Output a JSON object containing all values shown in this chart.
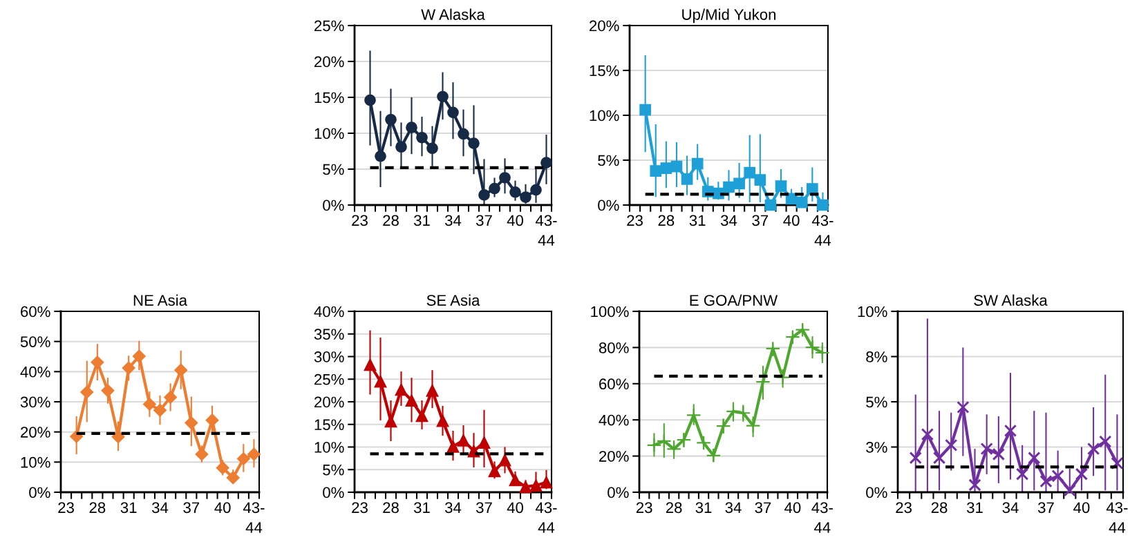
{
  "chart_data": [
    {
      "type": "line",
      "title": "W Alaska",
      "categories": [
        "23",
        null,
        null,
        "28",
        null,
        null,
        "31",
        null,
        null,
        "34",
        null,
        null,
        "37",
        null,
        null,
        "40",
        null,
        null,
        "43-\n44"
      ],
      "ylim": [
        0,
        25
      ],
      "yticks": [
        {
          "value": 0,
          "label": "0%"
        },
        {
          "value": 5,
          "label": "5%"
        },
        {
          "value": 10,
          "label": "10%"
        },
        {
          "value": 15,
          "label": "15%"
        },
        {
          "value": 20,
          "label": "20%"
        },
        {
          "value": 25,
          "label": "25%"
        }
      ],
      "grid": "y",
      "marker": "circle",
      "line_style": "solid",
      "series": [
        {
          "color": "#172a45",
          "values": [
            null,
            14.6,
            6.8,
            11.9,
            8.1,
            10.8,
            9.4,
            7.9,
            15.1,
            12.9,
            9.9,
            8.6,
            1.4,
            2.3,
            3.8,
            1.8,
            1.1,
            2.1,
            5.9
          ],
          "errors": [
            null,
            [
              8.3,
              21.5
            ],
            [
              2.5,
              13.1
            ],
            [
              8.2,
              16.2
            ],
            [
              5.2,
              11.5
            ],
            [
              7.1,
              15.0
            ],
            [
              6.8,
              12.3
            ],
            [
              5.4,
              11.0
            ],
            [
              11.9,
              18.5
            ],
            [
              9.2,
              17.1
            ],
            [
              6.8,
              13.3
            ],
            [
              4.3,
              13.9
            ],
            [
              0,
              6.4
            ],
            [
              1.1,
              3.8
            ],
            [
              1.6,
              6.5
            ],
            [
              0.6,
              3.4
            ],
            [
              0.2,
              2.9
            ],
            [
              0.3,
              5.1
            ],
            [
              2.9,
              9.8
            ]
          ]
        }
      ],
      "ref_lines": [
        {
          "axis": "y",
          "value": 5.2,
          "color": "#000000",
          "line_style": "dashed"
        }
      ]
    },
    {
      "type": "line",
      "title": "Up/Mid Yukon",
      "categories": [
        "23",
        null,
        null,
        "28",
        null,
        null,
        "31",
        null,
        null,
        "34",
        null,
        null,
        "37",
        null,
        null,
        "40",
        null,
        null,
        "43-\n44"
      ],
      "ylim": [
        0,
        20
      ],
      "yticks": [
        {
          "value": 0,
          "label": "0%"
        },
        {
          "value": 5,
          "label": "5%"
        },
        {
          "value": 10,
          "label": "10%"
        },
        {
          "value": 15,
          "label": "15%"
        },
        {
          "value": 20,
          "label": "20%"
        }
      ],
      "grid": "y",
      "marker": "square",
      "line_style": "solid",
      "series": [
        {
          "color": "#1ea0d7",
          "values": [
            null,
            10.6,
            3.8,
            4.1,
            4.3,
            2.9,
            4.6,
            1.5,
            1.3,
            2.0,
            2.4,
            3.6,
            2.8,
            0,
            2.1,
            0.7,
            0.3,
            1.8,
            0
          ],
          "errors": [
            null,
            [
              5.9,
              16.7
            ],
            [
              0.9,
              9.0
            ],
            [
              1.9,
              7.1
            ],
            [
              2.0,
              7.0
            ],
            [
              1.1,
              5.5
            ],
            [
              2.8,
              6.8
            ],
            [
              0.5,
              3.1
            ],
            [
              0.6,
              2.6
            ],
            [
              0.5,
              3.9
            ],
            [
              0.8,
              4.7
            ],
            [
              0.3,
              7.8
            ],
            [
              0.3,
              7.9
            ],
            null,
            [
              0.8,
              4.0
            ],
            [
              0.1,
              1.8
            ],
            [
              0.3,
              2.0
            ],
            [
              0.4,
              4.2
            ],
            [
              0,
              1.4
            ]
          ]
        }
      ],
      "ref_lines": [
        {
          "axis": "y",
          "value": 1.2,
          "color": "#000000",
          "line_style": "dashed"
        }
      ]
    },
    {
      "type": "line",
      "title": "NE Asia",
      "categories": [
        "23",
        null,
        null,
        "28",
        null,
        null,
        "31",
        null,
        null,
        "34",
        null,
        null,
        "37",
        null,
        null,
        "40",
        null,
        null,
        "43-\n44"
      ],
      "ylim": [
        0,
        60
      ],
      "yticks": [
        {
          "value": 0,
          "label": "0%"
        },
        {
          "value": 10,
          "label": "10%"
        },
        {
          "value": 20,
          "label": "20%"
        },
        {
          "value": 30,
          "label": "30%"
        },
        {
          "value": 40,
          "label": "40%"
        },
        {
          "value": 50,
          "label": "50%"
        },
        {
          "value": 60,
          "label": "60%"
        }
      ],
      "grid": "y",
      "marker": "diamond",
      "line_style": "solid",
      "series": [
        {
          "color": "#ed7d31",
          "values": [
            null,
            18.5,
            33.2,
            43.1,
            33.7,
            18.4,
            41.2,
            45.1,
            29.2,
            27.2,
            31.5,
            40.5,
            23.0,
            12.6,
            23.9,
            8.1,
            4.8,
            11.1,
            12.6
          ],
          "errors": [
            null,
            [
              12.6,
              25.2
            ],
            [
              23.3,
              43.6
            ],
            [
              37.1,
              49.2
            ],
            [
              29.4,
              38.0
            ],
            [
              13.7,
              23.5
            ],
            [
              37.0,
              45.3
            ],
            [
              40.5,
              50.2
            ],
            [
              25.0,
              33.4
            ],
            [
              22.4,
              32.1
            ],
            [
              26.9,
              36.1
            ],
            [
              34.2,
              47.0
            ],
            [
              15.3,
              31.7
            ],
            [
              9.9,
              15.5
            ],
            [
              19.1,
              28.7
            ],
            [
              5.6,
              10.7
            ],
            [
              2.9,
              7.5
            ],
            [
              6.7,
              16.0
            ],
            [
              8.2,
              17.6
            ]
          ]
        }
      ],
      "ref_lines": [
        {
          "axis": "y",
          "value": 19.5,
          "color": "#000000",
          "line_style": "dashed"
        }
      ]
    },
    {
      "type": "line",
      "title": "SE Asia",
      "categories": [
        "23",
        null,
        null,
        "28",
        null,
        null,
        "31",
        null,
        null,
        "34",
        null,
        null,
        "37",
        null,
        null,
        "40",
        null,
        null,
        "43-\n44"
      ],
      "ylim": [
        0,
        40
      ],
      "yticks": [
        {
          "value": 0,
          "label": "0%"
        },
        {
          "value": 5,
          "label": "5%"
        },
        {
          "value": 10,
          "label": "10%"
        },
        {
          "value": 15,
          "label": "15%"
        },
        {
          "value": 20,
          "label": "20%"
        },
        {
          "value": 25,
          "label": "25%"
        },
        {
          "value": 30,
          "label": "30%"
        },
        {
          "value": 35,
          "label": "35%"
        },
        {
          "value": 40,
          "label": "40%"
        }
      ],
      "grid": "y",
      "marker": "triangle",
      "line_style": "solid",
      "series": [
        {
          "color": "#c00000",
          "values": [
            null,
            28.2,
            24.5,
            15.7,
            22.7,
            20.3,
            16.9,
            22.5,
            15.8,
            10.1,
            11.5,
            9.1,
            11.0,
            4.7,
            7.1,
            2.7,
            1.2,
            1.5,
            2.2
          ],
          "errors": [
            null,
            [
              21.6,
              35.8
            ],
            [
              15.9,
              34.2
            ],
            [
              11.3,
              20.3
            ],
            [
              19.1,
              26.7
            ],
            [
              15.5,
              25.3
            ],
            [
              13.9,
              20.3
            ],
            [
              18.6,
              27.0
            ],
            [
              12.5,
              19.1
            ],
            [
              7.0,
              13.6
            ],
            [
              8.7,
              14.8
            ],
            [
              5.5,
              13.1
            ],
            [
              5.5,
              18.2
            ],
            [
              3.0,
              6.8
            ],
            [
              4.2,
              10.0
            ],
            [
              1.4,
              4.6
            ],
            [
              0.3,
              2.7
            ],
            [
              0.3,
              4.5
            ],
            [
              0.7,
              4.9
            ]
          ]
        }
      ],
      "ref_lines": [
        {
          "axis": "y",
          "value": 8.5,
          "color": "#000000",
          "line_style": "dashed"
        }
      ]
    },
    {
      "type": "line",
      "title": "E GOA/PNW",
      "categories": [
        "23",
        null,
        null,
        "28",
        null,
        null,
        "31",
        null,
        null,
        "34",
        null,
        null,
        "37",
        null,
        null,
        "40",
        null,
        null,
        "43-\n44"
      ],
      "ylim": [
        0,
        100
      ],
      "yticks": [
        {
          "value": 0,
          "label": "0%"
        },
        {
          "value": 20,
          "label": "20%"
        },
        {
          "value": 40,
          "label": "40%"
        },
        {
          "value": 60,
          "label": "60%"
        },
        {
          "value": 80,
          "label": "80%"
        },
        {
          "value": 100,
          "label": "100%"
        }
      ],
      "grid": "y",
      "marker": "plus",
      "line_style": "solid",
      "series": [
        {
          "color": "#4ea72e",
          "values": [
            null,
            26.0,
            28.3,
            23.9,
            29.0,
            42.6,
            27.3,
            20.3,
            36.6,
            44.7,
            43.8,
            36.8,
            61.0,
            79.4,
            63.5,
            85.8,
            89.8,
            80.1,
            77.1
          ],
          "errors": [
            null,
            [
              19.7,
              32.7
            ],
            [
              19.1,
              38.1
            ],
            [
              18.4,
              28.6
            ],
            [
              24.8,
              32.7
            ],
            [
              37.1,
              48.7
            ],
            [
              23.9,
              30.9
            ],
            [
              16.8,
              24.1
            ],
            [
              32.4,
              40.7
            ],
            [
              39.1,
              49.8
            ],
            [
              39.0,
              48.3
            ],
            [
              30.5,
              41.9
            ],
            [
              51.2,
              69.9
            ],
            [
              75.2,
              82.2
            ],
            [
              57.8,
              68.0
            ],
            [
              82.0,
              88.6
            ],
            [
              87.7,
              92.8
            ],
            [
              74.0,
              86.2
            ],
            [
              71.4,
              82.8
            ]
          ]
        }
      ],
      "ref_lines": [
        {
          "axis": "y",
          "value": 64.2,
          "color": "#000000",
          "line_style": "dashed"
        }
      ]
    },
    {
      "type": "line",
      "title": "SW Alaska",
      "categories": [
        "23",
        null,
        null,
        "28",
        null,
        null,
        "31",
        null,
        null,
        "34",
        null,
        null,
        "37",
        null,
        null,
        "40",
        null,
        null,
        "43-\n44"
      ],
      "ylim": [
        0,
        10
      ],
      "yticks": [
        {
          "value": 0,
          "label": "0%"
        },
        {
          "value": 2.5,
          "label": "3%"
        },
        {
          "value": 5,
          "label": "5%"
        },
        {
          "value": 7.5,
          "label": "8%"
        },
        {
          "value": 10,
          "label": "10%"
        }
      ],
      "grid": "y",
      "marker": "cross",
      "line_style": "solid",
      "series": [
        {
          "color": "#7030a0",
          "values": [
            null,
            1.9,
            3.2,
            1.9,
            2.6,
            4.7,
            0.4,
            2.4,
            2.1,
            3.4,
            1.0,
            1.9,
            0.6,
            0.9,
            0.1,
            1.0,
            2.4,
            2.8,
            1.6
          ],
          "errors": [
            null,
            [
              0,
              5.4
            ],
            [
              0,
              9.6
            ],
            [
              0.1,
              4.5
            ],
            [
              1.2,
              4.4
            ],
            [
              2.0,
              8.0
            ],
            [
              0,
              2.4
            ],
            [
              1.0,
              4.3
            ],
            [
              0.5,
              4.2
            ],
            [
              0.7,
              6.6
            ],
            [
              0,
              2.6
            ],
            [
              0.1,
              4.5
            ],
            [
              0,
              4.4
            ],
            [
              0,
              2.3
            ],
            [
              0,
              1.3
            ],
            [
              0.1,
              2.5
            ],
            [
              0.9,
              4.7
            ],
            [
              0.1,
              6.5
            ],
            [
              0.1,
              4.3
            ]
          ]
        }
      ],
      "ref_lines": [
        {
          "axis": "y",
          "value": 1.4,
          "color": "#000000",
          "line_style": "dashed"
        }
      ]
    }
  ]
}
